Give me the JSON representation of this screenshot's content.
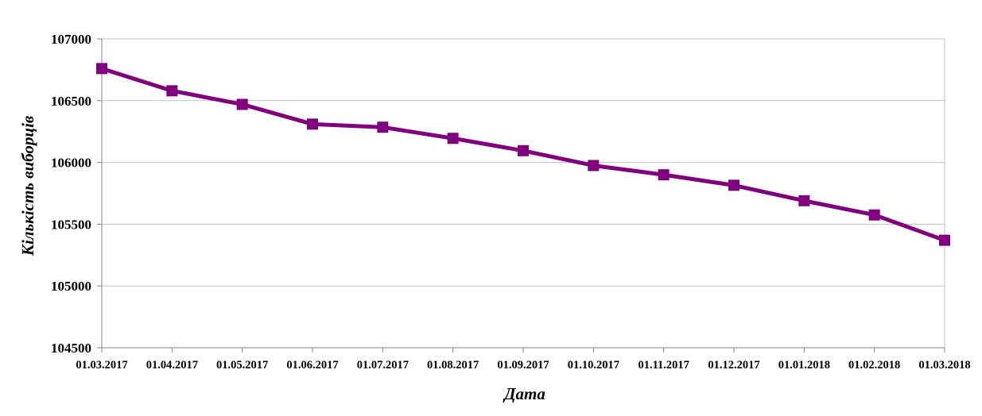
{
  "chart_data": {
    "type": "line",
    "title": "",
    "xlabel": "Дата",
    "ylabel": "Кількість виборців",
    "categories": [
      "01.03.2017",
      "01.04.2017",
      "01.05.2017",
      "01.06.2017",
      "01.07.2017",
      "01.08.2017",
      "01.09.2017",
      "01.10.2017",
      "01.11.2017",
      "01.12.2017",
      "01.01.2018",
      "01.02.2018",
      "01.03.2018"
    ],
    "series": [
      {
        "values": [
          106760,
          106580,
          106470,
          106310,
          106285,
          106195,
          106095,
          105975,
          105900,
          105815,
          105690,
          105575,
          105370
        ]
      }
    ],
    "ylim": [
      104500,
      107000
    ],
    "yticks": [
      104500,
      105000,
      105500,
      106000,
      106500,
      107000
    ],
    "grid": true,
    "legend": "none",
    "colors": {
      "line": "#800080",
      "marker": "#800080",
      "grid": "#c0c0c0",
      "axis": "#868686"
    },
    "marker": "square"
  }
}
